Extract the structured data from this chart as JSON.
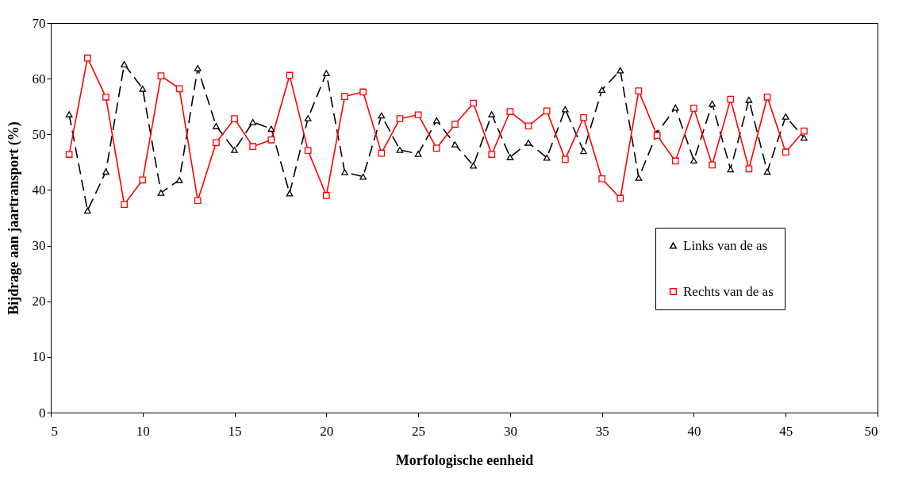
{
  "chart_data": {
    "type": "line",
    "xlabel": "Morfologische eenheid",
    "ylabel": "Bijdrage aan jaartransport (%)",
    "x": [
      6,
      7,
      8,
      9,
      10,
      11,
      12,
      13,
      14,
      15,
      16,
      17,
      18,
      19,
      20,
      21,
      22,
      23,
      24,
      25,
      26,
      27,
      28,
      29,
      30,
      31,
      32,
      33,
      34,
      35,
      36,
      37,
      38,
      39,
      40,
      41,
      42,
      43,
      44,
      45,
      46
    ],
    "series": [
      {
        "name": "Links van de as",
        "color": "#000000",
        "marker": "triangle",
        "line_style": "dashed",
        "values": [
          53.6,
          36.3,
          43.3,
          62.6,
          58.2,
          39.5,
          41.8,
          61.9,
          51.5,
          47.2,
          52.2,
          51.0,
          39.4,
          52.9,
          61.0,
          43.2,
          42.4,
          53.4,
          47.2,
          46.5,
          52.5,
          48.2,
          44.4,
          53.6,
          45.9,
          48.5,
          45.8,
          54.5,
          47.0,
          58.0,
          61.5,
          42.2,
          50.2,
          54.8,
          45.3,
          55.5,
          43.7,
          56.2,
          43.3,
          53.2,
          49.4
        ]
      },
      {
        "name": "Rechts van de as",
        "color": "#ff0000",
        "marker": "square",
        "line_style": "solid",
        "values": [
          46.4,
          63.7,
          56.7,
          37.4,
          41.8,
          60.5,
          58.2,
          38.1,
          48.5,
          52.8,
          47.8,
          49.0,
          60.6,
          47.1,
          39.0,
          56.8,
          57.6,
          46.6,
          52.8,
          53.5,
          47.5,
          51.8,
          55.6,
          46.4,
          54.1,
          51.5,
          54.2,
          45.5,
          53.0,
          42.0,
          38.5,
          57.8,
          49.8,
          45.2,
          54.7,
          44.5,
          56.3,
          43.8,
          56.7,
          46.8,
          50.6
        ]
      }
    ],
    "xlim": [
      5,
      50
    ],
    "xticks": [
      5,
      10,
      15,
      20,
      25,
      30,
      35,
      40,
      45,
      50
    ],
    "ylim": [
      0,
      70
    ],
    "yticks": [
      0,
      10,
      20,
      30,
      40,
      50,
      60,
      70
    ],
    "grid": false,
    "legend": "right"
  }
}
